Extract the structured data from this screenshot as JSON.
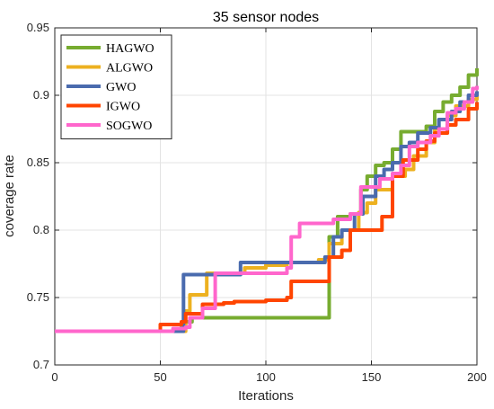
{
  "chart_data": {
    "type": "line",
    "title": "35 sensor nodes",
    "xlabel": "Iterations",
    "ylabel": "coverage rate",
    "xlim": [
      0,
      200
    ],
    "ylim": [
      0.7,
      0.95
    ],
    "xticks": [
      "0",
      "50",
      "100",
      "150",
      "200"
    ],
    "xtick_values": [
      0,
      50,
      100,
      150,
      200
    ],
    "yticks": [
      "0.7",
      "0.75",
      "0.8",
      "0.85",
      "0.9",
      "0.95"
    ],
    "ytick_values": [
      0.7,
      0.75,
      0.8,
      0.85,
      0.9,
      0.95
    ],
    "grid": true,
    "legend_position": "top-left",
    "series": [
      {
        "name": "HAGWO",
        "color": "#77AC30",
        "points": [
          [
            0,
            0.725
          ],
          [
            55,
            0.725
          ],
          [
            60,
            0.73
          ],
          [
            62,
            0.732
          ],
          [
            65,
            0.735
          ],
          [
            128,
            0.735
          ],
          [
            130,
            0.795
          ],
          [
            134,
            0.81
          ],
          [
            140,
            0.812
          ],
          [
            145,
            0.83
          ],
          [
            148,
            0.84
          ],
          [
            152,
            0.848
          ],
          [
            156,
            0.85
          ],
          [
            160,
            0.86
          ],
          [
            164,
            0.873
          ],
          [
            172,
            0.873
          ],
          [
            176,
            0.877
          ],
          [
            180,
            0.888
          ],
          [
            184,
            0.895
          ],
          [
            188,
            0.9
          ],
          [
            192,
            0.906
          ],
          [
            196,
            0.915
          ],
          [
            200,
            0.92
          ]
        ]
      },
      {
        "name": "ALGWO",
        "color": "#EDB120",
        "points": [
          [
            0,
            0.725
          ],
          [
            60,
            0.725
          ],
          [
            62,
            0.74
          ],
          [
            64,
            0.752
          ],
          [
            70,
            0.752
          ],
          [
            72,
            0.768
          ],
          [
            88,
            0.768
          ],
          [
            90,
            0.772
          ],
          [
            100,
            0.774
          ],
          [
            110,
            0.776
          ],
          [
            125,
            0.778
          ],
          [
            130,
            0.79
          ],
          [
            136,
            0.8
          ],
          [
            144,
            0.813
          ],
          [
            148,
            0.82
          ],
          [
            152,
            0.83
          ],
          [
            160,
            0.84
          ],
          [
            166,
            0.845
          ],
          [
            170,
            0.855
          ],
          [
            176,
            0.865
          ],
          [
            180,
            0.875
          ],
          [
            186,
            0.885
          ],
          [
            190,
            0.892
          ],
          [
            196,
            0.897
          ],
          [
            200,
            0.9
          ]
        ]
      },
      {
        "name": "GWO",
        "color": "#4A6BAE",
        "points": [
          [
            0,
            0.725
          ],
          [
            60,
            0.725
          ],
          [
            61,
            0.767
          ],
          [
            86,
            0.767
          ],
          [
            88,
            0.776
          ],
          [
            125,
            0.776
          ],
          [
            128,
            0.78
          ],
          [
            132,
            0.795
          ],
          [
            136,
            0.8
          ],
          [
            142,
            0.812
          ],
          [
            146,
            0.825
          ],
          [
            152,
            0.84
          ],
          [
            156,
            0.845
          ],
          [
            160,
            0.85
          ],
          [
            164,
            0.862
          ],
          [
            168,
            0.865
          ],
          [
            172,
            0.872
          ],
          [
            178,
            0.876
          ],
          [
            182,
            0.882
          ],
          [
            188,
            0.888
          ],
          [
            192,
            0.895
          ],
          [
            196,
            0.9
          ],
          [
            200,
            0.903
          ]
        ]
      },
      {
        "name": "IGWO",
        "color": "#FF4500",
        "points": [
          [
            0,
            0.725
          ],
          [
            48,
            0.725
          ],
          [
            50,
            0.73
          ],
          [
            60,
            0.732
          ],
          [
            62,
            0.738
          ],
          [
            70,
            0.745
          ],
          [
            80,
            0.746
          ],
          [
            85,
            0.747
          ],
          [
            100,
            0.748
          ],
          [
            110,
            0.75
          ],
          [
            112,
            0.762
          ],
          [
            125,
            0.762
          ],
          [
            130,
            0.78
          ],
          [
            136,
            0.785
          ],
          [
            140,
            0.8
          ],
          [
            150,
            0.8
          ],
          [
            155,
            0.81
          ],
          [
            160,
            0.84
          ],
          [
            165,
            0.852
          ],
          [
            172,
            0.86
          ],
          [
            176,
            0.866
          ],
          [
            180,
            0.872
          ],
          [
            186,
            0.878
          ],
          [
            190,
            0.882
          ],
          [
            196,
            0.89
          ],
          [
            200,
            0.895
          ]
        ]
      },
      {
        "name": "SOGWO",
        "color": "#FF66CC",
        "points": [
          [
            0,
            0.725
          ],
          [
            52,
            0.725
          ],
          [
            56,
            0.727
          ],
          [
            62,
            0.728
          ],
          [
            64,
            0.735
          ],
          [
            68,
            0.735
          ],
          [
            70,
            0.742
          ],
          [
            74,
            0.742
          ],
          [
            76,
            0.768
          ],
          [
            100,
            0.768
          ],
          [
            110,
            0.772
          ],
          [
            112,
            0.795
          ],
          [
            114,
            0.795
          ],
          [
            116,
            0.805
          ],
          [
            125,
            0.805
          ],
          [
            132,
            0.808
          ],
          [
            140,
            0.812
          ],
          [
            145,
            0.832
          ],
          [
            150,
            0.832
          ],
          [
            154,
            0.838
          ],
          [
            160,
            0.842
          ],
          [
            164,
            0.848
          ],
          [
            168,
            0.862
          ],
          [
            172,
            0.865
          ],
          [
            178,
            0.87
          ],
          [
            182,
            0.875
          ],
          [
            186,
            0.887
          ],
          [
            190,
            0.89
          ],
          [
            194,
            0.895
          ],
          [
            198,
            0.905
          ],
          [
            200,
            0.907
          ]
        ]
      }
    ]
  }
}
